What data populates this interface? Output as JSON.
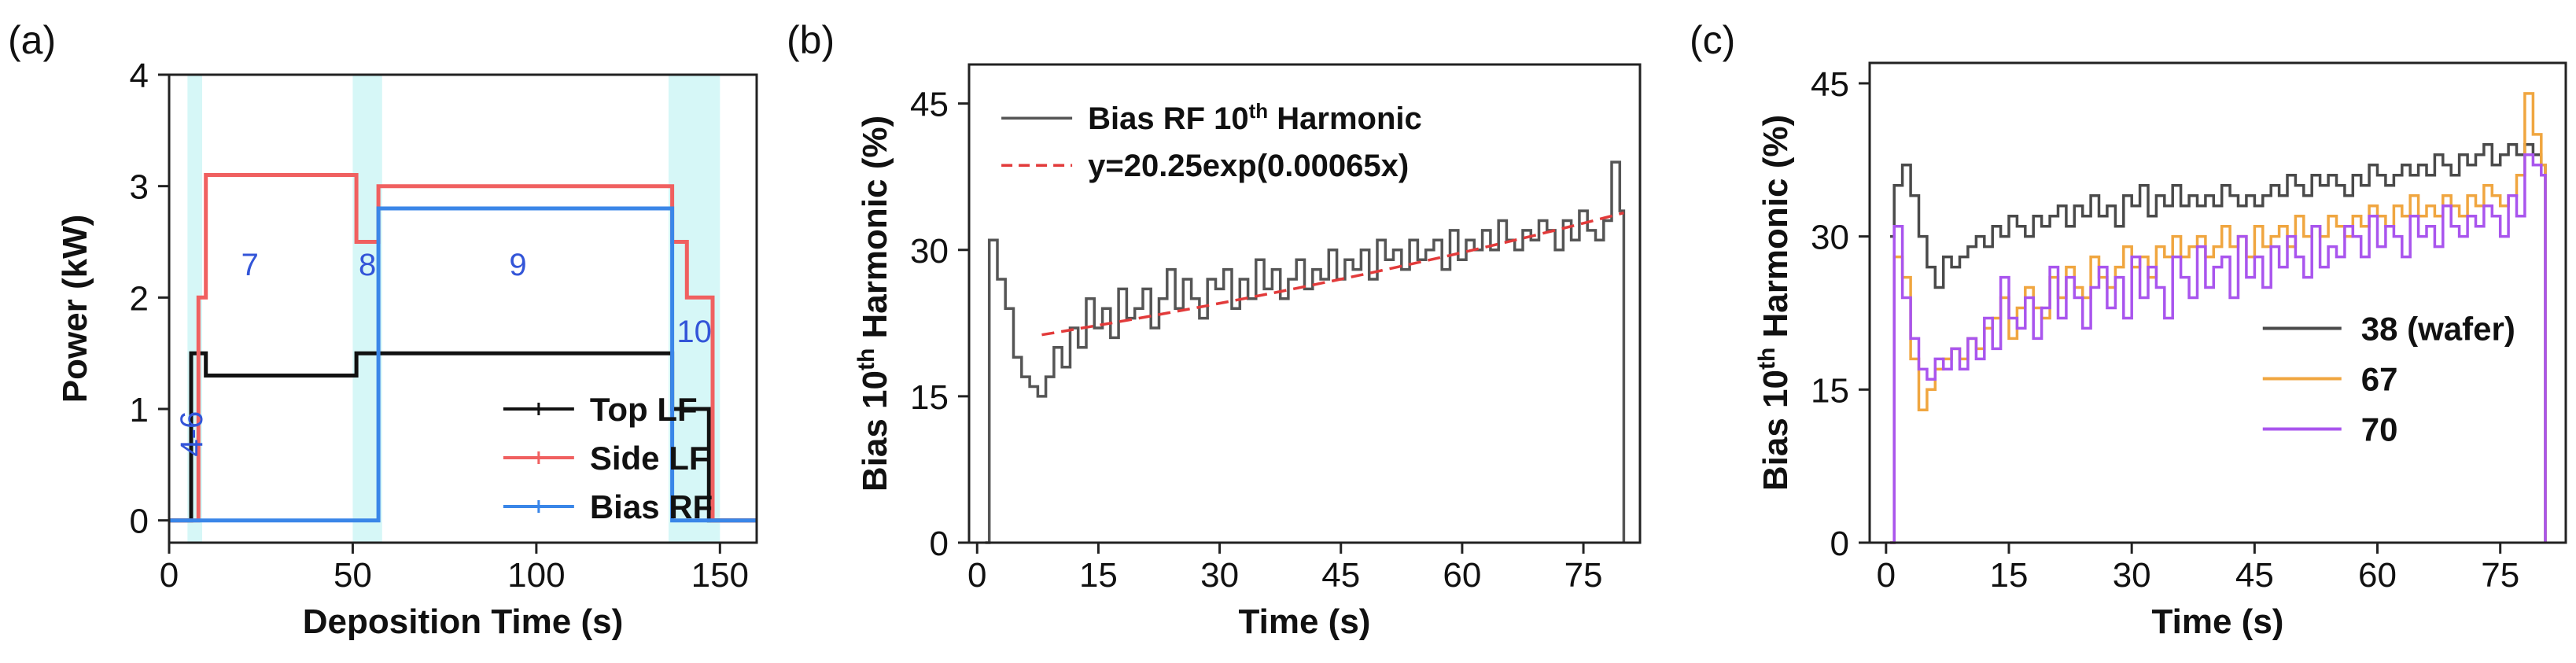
{
  "panel_labels": [
    "(a)",
    "(b)",
    "(c)"
  ],
  "colors": {
    "top_lf": "#111111",
    "side_lf": "#f06060",
    "bias_rf": "#3a86e8",
    "shade": "#d6f7f7",
    "phase_text": "#3355d8",
    "trace_b": "#555555",
    "fit": "#e23a3a",
    "wafer": "#4a4a4a",
    "s67": "#f0a640",
    "s70": "#a955ee"
  },
  "chart_data": [
    {
      "type": "line",
      "panel": "(a)",
      "xlabel": "Deposition Time (s)",
      "ylabel": "Power (kW)",
      "xlim": [
        0,
        160
      ],
      "ylim": [
        -0.2,
        4
      ],
      "xticks": [
        0,
        50,
        100,
        150
      ],
      "yticks": [
        0,
        1,
        2,
        3,
        4
      ],
      "legend": "bottom-right",
      "series": [
        {
          "name": "Top LF",
          "color": "#111111",
          "x": [
            0,
            6,
            6,
            10,
            10,
            51,
            51,
            137,
            137,
            147,
            147,
            160
          ],
          "y": [
            0,
            0,
            1.5,
            1.5,
            1.3,
            1.3,
            1.5,
            1.5,
            1.0,
            1.0,
            0,
            0
          ]
        },
        {
          "name": "Side LF",
          "color": "#f06060",
          "x": [
            0,
            8,
            8,
            10,
            10,
            51,
            51,
            57,
            57,
            137,
            137,
            141,
            141,
            148,
            148,
            160
          ],
          "y": [
            0,
            0,
            2.0,
            2.0,
            3.1,
            3.1,
            2.5,
            2.5,
            3.0,
            3.0,
            2.5,
            2.5,
            2.0,
            2.0,
            0,
            0
          ]
        },
        {
          "name": "Bias RF",
          "color": "#3a86e8",
          "x": [
            0,
            57,
            57,
            137,
            137,
            160
          ],
          "y": [
            0,
            0,
            2.8,
            2.8,
            0,
            0
          ]
        }
      ],
      "phases": [
        {
          "label": "4-6",
          "x": [
            5,
            9
          ]
        },
        {
          "label": "7",
          "x": null
        },
        {
          "label": "8",
          "x": [
            50,
            58
          ]
        },
        {
          "label": "9",
          "x": null
        },
        {
          "label": "10",
          "x": [
            136,
            150
          ]
        }
      ]
    },
    {
      "type": "line",
      "panel": "(b)",
      "xlabel": "Time (s)",
      "ylabel": "Bias 10th Harmonic (%)",
      "xlim": [
        -1,
        82
      ],
      "ylim": [
        0,
        49
      ],
      "xticks": [
        0,
        15,
        30,
        45,
        60,
        75
      ],
      "yticks": [
        0,
        15,
        30,
        45
      ],
      "legend": "top-left",
      "series": [
        {
          "name": "Bias RF 10th Harmonic",
          "color": "#555555",
          "step": true,
          "x": [
            1,
            1.5,
            2.5,
            3.5,
            4.5,
            5.5,
            6.5,
            7.5,
            8.5,
            9.5,
            10.5,
            11.5,
            12.5,
            13.5,
            14.5,
            15.5,
            16.5,
            17.5,
            18.5,
            19.5,
            20.5,
            21.5,
            22.5,
            23.5,
            24.5,
            25.5,
            26.5,
            27.5,
            28.5,
            29.5,
            30.5,
            31.5,
            32.5,
            33.5,
            34.5,
            35.5,
            36.5,
            37.5,
            38.5,
            39.5,
            40.5,
            41.5,
            42.5,
            43.5,
            44.5,
            45.5,
            46.5,
            47.5,
            48.5,
            49.5,
            50.5,
            51.5,
            52.5,
            53.5,
            54.5,
            55.5,
            56.5,
            57.5,
            58.5,
            59.5,
            60.5,
            61.5,
            62.5,
            63.5,
            64.5,
            65.5,
            66.5,
            67.5,
            68.5,
            69.5,
            70.5,
            71.5,
            72.5,
            73.5,
            74.5,
            75.5,
            76.5,
            77.5,
            78.5,
            79.5,
            80
          ],
          "y": [
            0,
            31,
            27,
            24,
            19,
            17,
            16,
            15,
            17,
            20,
            18,
            22,
            20,
            25,
            22,
            24,
            21,
            26,
            23,
            24,
            26,
            22,
            25,
            28,
            24,
            27,
            25,
            23,
            27,
            26,
            28,
            24,
            27,
            25,
            29,
            26,
            28,
            25,
            27,
            29,
            26,
            28,
            27,
            30,
            27,
            29,
            28,
            30,
            27,
            31,
            29,
            30,
            28,
            31,
            29,
            30,
            31,
            28,
            32,
            29,
            31,
            30,
            32,
            30,
            33,
            31,
            30,
            32,
            31,
            33,
            32,
            30,
            33,
            31,
            34,
            32,
            31,
            33,
            39,
            34,
            0
          ]
        },
        {
          "name": "y=20.25exp(0.00065x)",
          "color": "#e23a3a",
          "dashed": true,
          "x": [
            8,
            80
          ],
          "y": [
            21.3,
            33.8
          ]
        }
      ]
    },
    {
      "type": "line",
      "panel": "(c)",
      "xlabel": "Time (s)",
      "ylabel": "Bias 10th Harmonic (%)",
      "xlim": [
        -2,
        83
      ],
      "ylim": [
        0,
        47
      ],
      "xticks": [
        0,
        15,
        30,
        45,
        60,
        75
      ],
      "yticks": [
        0,
        15,
        30,
        45
      ],
      "legend": "bottom-right",
      "series": [
        {
          "name": "38 (wafer)",
          "color": "#4a4a4a",
          "step": true,
          "x": [
            0.5,
            1,
            2,
            3,
            4,
            5,
            6,
            7,
            8,
            9,
            10,
            11,
            12,
            13,
            14,
            15,
            16,
            17,
            18,
            19,
            20,
            21,
            22,
            23,
            24,
            25,
            26,
            27,
            28,
            29,
            30,
            31,
            32,
            33,
            34,
            35,
            36,
            37,
            38,
            39,
            40,
            41,
            42,
            43,
            44,
            45,
            46,
            47,
            48,
            49,
            50,
            51,
            52,
            53,
            54,
            55,
            56,
            57,
            58,
            59,
            60,
            61,
            62,
            63,
            64,
            65,
            66,
            67,
            68,
            69,
            70,
            71,
            72,
            73,
            74,
            75,
            76,
            77,
            78,
            79,
            80,
            80.5
          ],
          "y": [
            30,
            35,
            37,
            34,
            30,
            27,
            25,
            28,
            27,
            28,
            29,
            30,
            29,
            31,
            30,
            32,
            31,
            30,
            32,
            31,
            32,
            33,
            31,
            33,
            32,
            34,
            32,
            33,
            31,
            34,
            33,
            35,
            32,
            34,
            33,
            35,
            33,
            34,
            33,
            34,
            33,
            35,
            34,
            33,
            34,
            33,
            34,
            35,
            34,
            36,
            35,
            34,
            36,
            35,
            36,
            35,
            34,
            36,
            35,
            37,
            36,
            35,
            36,
            37,
            36,
            37,
            36,
            38,
            37,
            36,
            38,
            37,
            38,
            39,
            37,
            38,
            39,
            38,
            39,
            38,
            37,
            0
          ]
        },
        {
          "name": "67",
          "color": "#f0a640",
          "step": true,
          "x": [
            0.5,
            1,
            2,
            3,
            4,
            5,
            6,
            7,
            8,
            9,
            10,
            11,
            12,
            13,
            14,
            15,
            16,
            17,
            18,
            19,
            20,
            21,
            22,
            23,
            24,
            25,
            26,
            27,
            28,
            29,
            30,
            31,
            32,
            33,
            34,
            35,
            36,
            37,
            38,
            39,
            40,
            41,
            42,
            43,
            44,
            45,
            46,
            47,
            48,
            49,
            50,
            51,
            52,
            53,
            54,
            55,
            56,
            57,
            58,
            59,
            60,
            61,
            62,
            63,
            64,
            65,
            66,
            67,
            68,
            69,
            70,
            71,
            72,
            73,
            74,
            75,
            76,
            77,
            78,
            79,
            80,
            80.5
          ],
          "y": [
            0,
            28,
            26,
            18,
            13,
            15,
            17,
            18,
            19,
            18,
            20,
            19,
            21,
            22,
            24,
            20,
            23,
            25,
            23,
            22,
            26,
            24,
            27,
            25,
            24,
            28,
            26,
            25,
            27,
            29,
            27,
            28,
            26,
            29,
            28,
            30,
            28,
            29,
            30,
            28,
            29,
            31,
            29,
            30,
            28,
            31,
            29,
            30,
            31,
            29,
            32,
            30,
            31,
            30,
            32,
            31,
            30,
            32,
            31,
            33,
            32,
            31,
            33,
            32,
            34,
            32,
            33,
            32,
            34,
            33,
            32,
            34,
            33,
            35,
            34,
            33,
            34,
            36,
            44,
            40,
            37,
            0
          ]
        },
        {
          "name": "70",
          "color": "#a955ee",
          "step": true,
          "x": [
            0.5,
            1,
            2,
            3,
            4,
            5,
            6,
            7,
            8,
            9,
            10,
            11,
            12,
            13,
            14,
            15,
            16,
            17,
            18,
            19,
            20,
            21,
            22,
            23,
            24,
            25,
            26,
            27,
            28,
            29,
            30,
            31,
            32,
            33,
            34,
            35,
            36,
            37,
            38,
            39,
            40,
            41,
            42,
            43,
            44,
            45,
            46,
            47,
            48,
            49,
            50,
            51,
            52,
            53,
            54,
            55,
            56,
            57,
            58,
            59,
            60,
            61,
            62,
            63,
            64,
            65,
            66,
            67,
            68,
            69,
            70,
            71,
            72,
            73,
            74,
            75,
            76,
            77,
            78,
            79,
            80,
            80.5
          ],
          "y": [
            0,
            31,
            24,
            20,
            17,
            16,
            18,
            17,
            19,
            17,
            20,
            18,
            22,
            19,
            26,
            22,
            21,
            24,
            20,
            23,
            27,
            22,
            26,
            24,
            21,
            25,
            27,
            23,
            26,
            22,
            28,
            24,
            27,
            25,
            22,
            28,
            26,
            24,
            29,
            25,
            27,
            28,
            24,
            30,
            26,
            28,
            25,
            29,
            27,
            30,
            28,
            26,
            31,
            27,
            29,
            28,
            31,
            30,
            28,
            32,
            29,
            31,
            30,
            28,
            32,
            30,
            31,
            29,
            33,
            31,
            30,
            32,
            31,
            33,
            32,
            30,
            34,
            32,
            38,
            37,
            36,
            0
          ]
        }
      ]
    }
  ]
}
